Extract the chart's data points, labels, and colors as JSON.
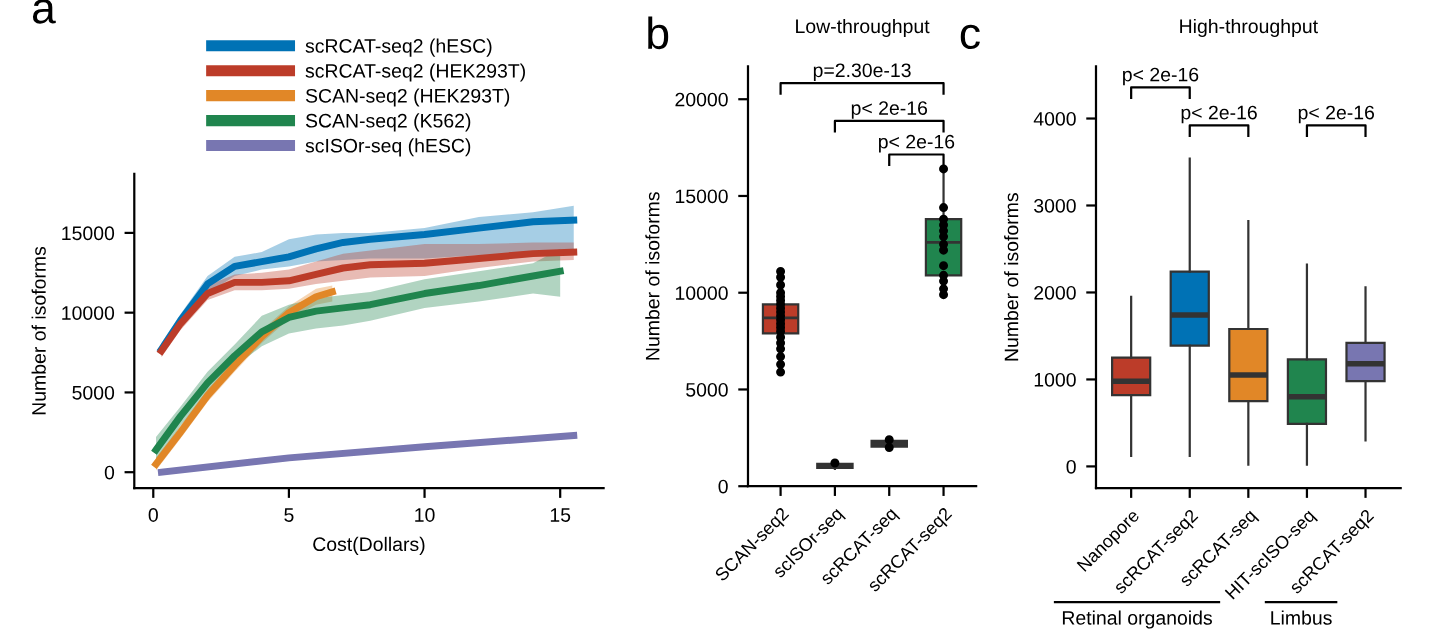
{
  "chart_data": [
    {
      "type": "line",
      "xlabel": "Cost(Dollars)",
      "ylabel": "Number of isoforms",
      "xlim": [
        -0.7,
        16.6
      ],
      "ylim": [
        -1000,
        18700
      ],
      "xticks": [
        0,
        5,
        10,
        15
      ],
      "yticks": [
        0,
        5000,
        10000,
        15000
      ],
      "legend": "top",
      "annotations": [
        "a"
      ],
      "series": [
        {
          "name": "scRCAT-seq2 (hESC)",
          "color": "#0072b5",
          "x": [
            0.3,
            1,
            2,
            3,
            4,
            5,
            6,
            7,
            8,
            10,
            12,
            14,
            15.5
          ],
          "values": [
            7700,
            9500,
            11800,
            12900,
            13200,
            13500,
            14000,
            14400,
            14600,
            14900,
            15300,
            15700,
            15800
          ],
          "lower": [
            7300,
            9100,
            11200,
            12300,
            12700,
            12900,
            13200,
            13300,
            13400,
            13400,
            13600,
            13700,
            13900
          ],
          "upper": [
            8100,
            9900,
            12300,
            13500,
            13800,
            14600,
            14900,
            15000,
            15000,
            15300,
            16000,
            16300,
            16700
          ]
        },
        {
          "name": "scRCAT-seq2 (HEK293T)",
          "color": "#bc3c29",
          "x": [
            0.3,
            1,
            2,
            3,
            4,
            5,
            6,
            7,
            8,
            10,
            12,
            14,
            15.5
          ],
          "values": [
            7600,
            9300,
            11200,
            11900,
            11900,
            12000,
            12400,
            12800,
            13000,
            13100,
            13400,
            13700,
            13800
          ],
          "lower": [
            7200,
            8900,
            10800,
            11400,
            11400,
            11500,
            11800,
            12000,
            12200,
            12300,
            12800,
            13200,
            13300
          ],
          "upper": [
            8000,
            9700,
            11700,
            12400,
            12500,
            12700,
            13200,
            13700,
            13900,
            14300,
            14300,
            14400,
            14400
          ]
        },
        {
          "name": "SCAN-seq2 (HEK293T)",
          "color": "#e18727",
          "x": [
            0.1,
            1,
            2,
            3,
            4,
            5,
            6,
            6.6
          ],
          "values": [
            500,
            2500,
            4800,
            6700,
            8500,
            10000,
            11000,
            11300
          ],
          "lower": [
            100,
            2100,
            4400,
            6300,
            8100,
            9600,
            10500,
            10700
          ],
          "upper": [
            900,
            2900,
            5200,
            7100,
            8900,
            10400,
            11500,
            11700
          ]
        },
        {
          "name": "SCAN-seq2 (K562)",
          "color": "#20854e",
          "x": [
            0.1,
            1,
            2,
            3,
            4,
            5,
            6,
            7,
            8,
            10,
            12,
            14,
            15
          ],
          "values": [
            1400,
            3500,
            5600,
            7300,
            8800,
            9700,
            10100,
            10300,
            10500,
            11200,
            11700,
            12300,
            12600
          ],
          "lower": [
            600,
            2900,
            4900,
            6600,
            7900,
            8700,
            9000,
            9200,
            9500,
            10300,
            10700,
            11200,
            11000
          ],
          "upper": [
            2200,
            4100,
            6300,
            8000,
            9800,
            10500,
            10900,
            11100,
            11300,
            12100,
            12600,
            13100,
            14000
          ]
        },
        {
          "name": "scISOr-seq (hESC)",
          "color": "#7876b1",
          "x": [
            0.3,
            5,
            10,
            15.5
          ],
          "values": [
            0,
            900,
            1600,
            2300
          ]
        }
      ]
    },
    {
      "type": "box",
      "title": "Low-throughput",
      "ylabel": "Number of isoforms",
      "categories": [
        "SCAN-seq2",
        "scISOr-seq",
        "scRCAT-seq",
        "scRCAT-seq2"
      ],
      "colors": [
        "#bc3c29",
        "#333333",
        "#333333",
        "#20854e"
      ],
      "ylim": [
        0,
        21700
      ],
      "yticks": [
        0,
        5000,
        10000,
        15000,
        20000
      ],
      "boxes": [
        {
          "low": 5900,
          "q1": 7900,
          "median": 8700,
          "q3": 9400,
          "high": 11000
        },
        {
          "low": 900,
          "q1": 950,
          "median": 1050,
          "q3": 1150,
          "high": 1200
        },
        {
          "low": 2000,
          "q1": 2050,
          "median": 2200,
          "q3": 2350,
          "high": 2400
        },
        {
          "low": 9900,
          "q1": 10900,
          "median": 12600,
          "q3": 13800,
          "high": 16400
        }
      ],
      "series": [
        {
          "type": "scatter",
          "color": "#000000",
          "x": [
            "SCAN-seq2",
            "SCAN-seq2",
            "SCAN-seq2",
            "SCAN-seq2",
            "SCAN-seq2",
            "SCAN-seq2",
            "SCAN-seq2",
            "SCAN-seq2",
            "SCAN-seq2",
            "SCAN-seq2",
            "SCAN-seq2",
            "SCAN-seq2",
            "SCAN-seq2",
            "SCAN-seq2",
            "SCAN-seq2",
            "SCAN-seq2",
            "SCAN-seq2",
            "SCAN-seq2",
            "SCAN-seq2",
            "SCAN-seq2",
            "scISOr-seq",
            "scISOr-seq",
            "scISOr-seq",
            "scRCAT-seq",
            "scRCAT-seq",
            "scRCAT-seq2",
            "scRCAT-seq2",
            "scRCAT-seq2",
            "scRCAT-seq2",
            "scRCAT-seq2",
            "scRCAT-seq2",
            "scRCAT-seq2",
            "scRCAT-seq2",
            "scRCAT-seq2",
            "scRCAT-seq2",
            "scRCAT-seq2",
            "scRCAT-seq2",
            "scRCAT-seq2",
            "scRCAT-seq2",
            "scRCAT-seq2"
          ],
          "values": [
            11100,
            10800,
            10400,
            10000,
            9800,
            9600,
            9400,
            9200,
            9000,
            8800,
            8600,
            8400,
            8200,
            8000,
            7700,
            7400,
            7100,
            6700,
            6300,
            5900,
            null,
            null,
            1200,
            2400,
            2000,
            16400,
            null,
            null,
            14400,
            13800,
            13500,
            13200,
            12900,
            12500,
            12200,
            11400,
            10900,
            10600,
            10200,
            9900
          ]
        }
      ],
      "annotations": [
        "b",
        "p=2.30e-13",
        "p< 2e-16",
        "p< 2e-16"
      ]
    },
    {
      "type": "box",
      "title": "High-throughput",
      "ylabel": "Number of isoforms",
      "categories": [
        "Nanopore",
        "scRCAT-seq2",
        "scRCAT-seq",
        "HIT-scISO-seq",
        "scRCAT-seq2"
      ],
      "colors": [
        "#bc3c29",
        "#0072b5",
        "#e18727",
        "#20854e",
        "#7876b1"
      ],
      "ylim": [
        -250,
        4600
      ],
      "yticks": [
        0,
        1000,
        2000,
        3000,
        4000
      ],
      "boxes": [
        {
          "low": 120,
          "q1": 820,
          "median": 980,
          "q3": 1250,
          "high": 1950
        },
        {
          "low": 120,
          "q1": 1390,
          "median": 1740,
          "q3": 2240,
          "high": 3540
        },
        {
          "low": 20,
          "q1": 750,
          "median": 1050,
          "q3": 1580,
          "high": 2820
        },
        {
          "low": 20,
          "q1": 490,
          "median": 800,
          "q3": 1230,
          "high": 2320
        },
        {
          "low": 300,
          "q1": 980,
          "median": 1180,
          "q3": 1420,
          "high": 2060
        }
      ],
      "annotations": [
        "c",
        "p< 2e-16",
        "p< 2e-16",
        "p< 2e-16",
        "Retinal organoids",
        "Limbus"
      ]
    }
  ]
}
